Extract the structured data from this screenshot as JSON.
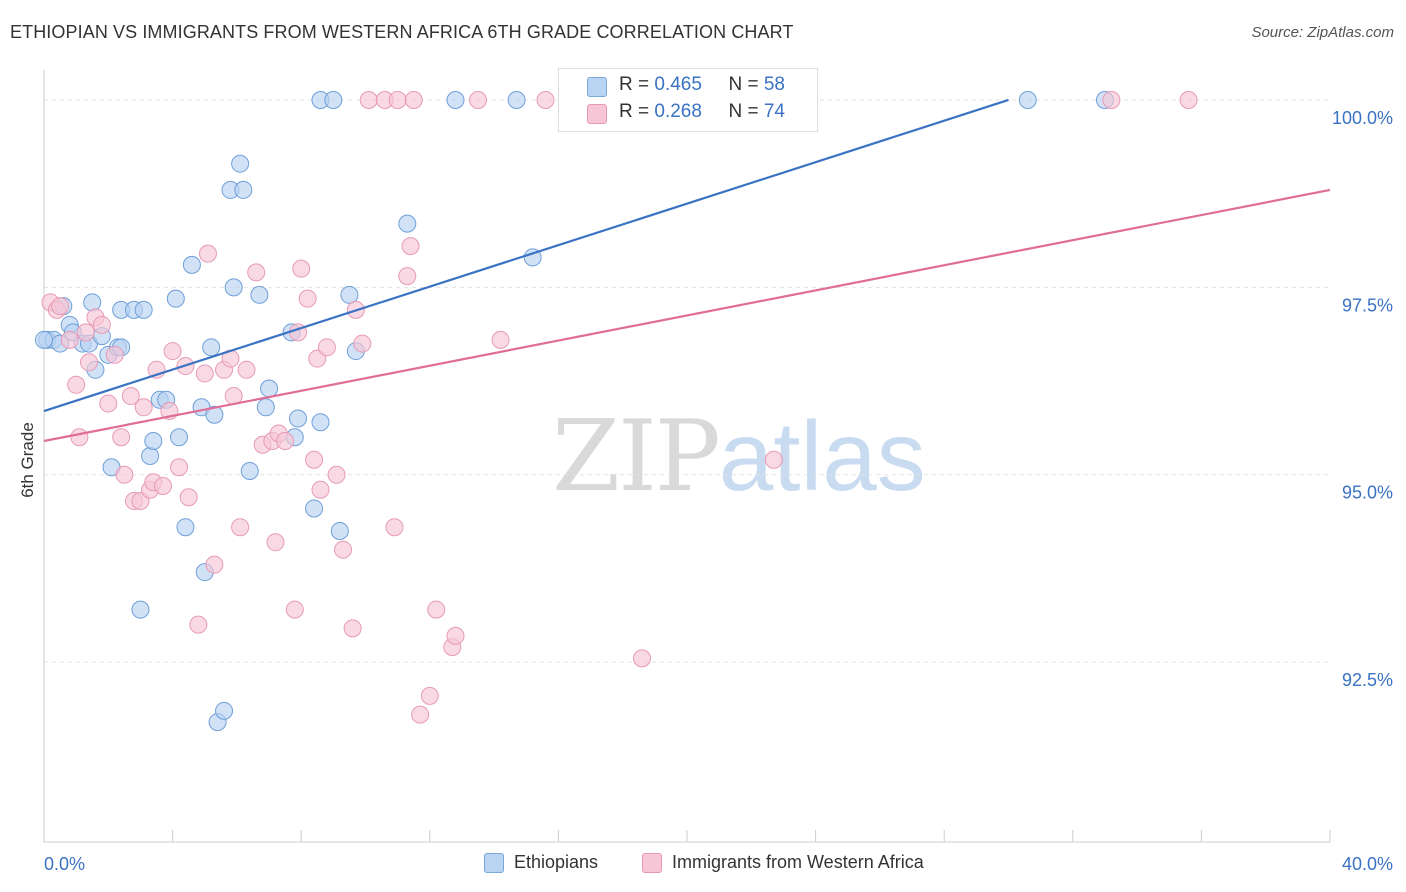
{
  "header": {
    "title": "ETHIOPIAN VS IMMIGRANTS FROM WESTERN AFRICA 6TH GRADE CORRELATION CHART",
    "source": "Source: ZipAtlas.com"
  },
  "watermark": {
    "zip": "ZIP",
    "atlas": "atlas"
  },
  "legend": {
    "blue": {
      "r_label": "R = ",
      "r_value": "0.465",
      "n_label": "N = ",
      "n_value": "58"
    },
    "pink": {
      "r_label": "R = ",
      "r_value": "0.268",
      "n_label": "N = ",
      "n_value": "74"
    }
  },
  "bottom_legend": {
    "blue": "Ethiopians",
    "pink": "Immigrants from Western Africa"
  },
  "colors": {
    "blue": "#3a72c4",
    "blue_fill": "#b9d3f2",
    "pink": "#e06c98",
    "pink_fill": "#f6c6d6",
    "grid": "#e3e3e3"
  },
  "chart_data": {
    "type": "scatter",
    "ylabel": "6th Grade",
    "xlim": [
      0,
      40
    ],
    "ylim": [
      90.1,
      100.4
    ],
    "x_tick_labels": [
      {
        "value": 0,
        "label": "0.0%"
      },
      {
        "value": 40,
        "label": "40.0%"
      }
    ],
    "y_tick_labels": [
      {
        "value": 100.0,
        "label": "100.0%"
      },
      {
        "value": 97.5,
        "label": "97.5%"
      },
      {
        "value": 95.0,
        "label": "95.0%"
      },
      {
        "value": 92.5,
        "label": "92.5%"
      }
    ],
    "series": [
      {
        "name": "Ethiopians",
        "color": "#3a72c4",
        "trend": [
          [
            0,
            95.85
          ],
          [
            30,
            100.0
          ]
        ],
        "points": [
          [
            0.1,
            96.8
          ],
          [
            0.3,
            96.8
          ],
          [
            0.5,
            96.75
          ],
          [
            0.6,
            97.25
          ],
          [
            0.8,
            97.0
          ],
          [
            0.9,
            96.9
          ],
          [
            1.2,
            96.75
          ],
          [
            1.4,
            96.75
          ],
          [
            1.5,
            97.3
          ],
          [
            1.6,
            96.4
          ],
          [
            1.8,
            96.85
          ],
          [
            2.0,
            96.6
          ],
          [
            2.3,
            96.7
          ],
          [
            2.4,
            96.7
          ],
          [
            2.4,
            97.2
          ],
          [
            2.1,
            95.1
          ],
          [
            2.8,
            97.2
          ],
          [
            3.1,
            97.2
          ],
          [
            3.0,
            93.2
          ],
          [
            3.3,
            95.25
          ],
          [
            3.4,
            95.45
          ],
          [
            3.6,
            96.0
          ],
          [
            3.8,
            96.0
          ],
          [
            4.1,
            97.35
          ],
          [
            4.2,
            95.5
          ],
          [
            4.4,
            94.3
          ],
          [
            4.6,
            97.8
          ],
          [
            4.9,
            95.9
          ],
          [
            5.0,
            93.7
          ],
          [
            5.2,
            96.7
          ],
          [
            5.3,
            95.8
          ],
          [
            5.4,
            91.7
          ],
          [
            5.6,
            91.85
          ],
          [
            5.8,
            98.8
          ],
          [
            5.9,
            97.5
          ],
          [
            6.1,
            99.15
          ],
          [
            6.2,
            98.8
          ],
          [
            6.4,
            95.05
          ],
          [
            6.7,
            97.4
          ],
          [
            6.9,
            95.9
          ],
          [
            7.0,
            96.15
          ],
          [
            7.7,
            96.9
          ],
          [
            7.8,
            95.5
          ],
          [
            7.9,
            95.75
          ],
          [
            8.4,
            94.55
          ],
          [
            8.6,
            95.7
          ],
          [
            8.6,
            100.0
          ],
          [
            9.0,
            100.0
          ],
          [
            9.2,
            94.25
          ],
          [
            9.5,
            97.4
          ],
          [
            9.7,
            96.65
          ],
          [
            11.3,
            98.35
          ],
          [
            12.8,
            100.0
          ],
          [
            14.7,
            100.0
          ],
          [
            15.2,
            97.9
          ],
          [
            30.6,
            100.0
          ],
          [
            33.0,
            100.0
          ],
          [
            0.0,
            96.8
          ]
        ]
      },
      {
        "name": "Immigrants from Western Africa",
        "color": "#e06c98",
        "trend": [
          [
            0,
            95.45
          ],
          [
            40,
            98.8
          ]
        ],
        "points": [
          [
            0.2,
            97.3
          ],
          [
            0.4,
            97.2
          ],
          [
            0.5,
            97.25
          ],
          [
            0.8,
            96.8
          ],
          [
            1.0,
            96.2
          ],
          [
            1.1,
            95.5
          ],
          [
            1.3,
            96.9
          ],
          [
            1.4,
            96.5
          ],
          [
            1.6,
            97.1
          ],
          [
            1.8,
            97.0
          ],
          [
            2.0,
            95.95
          ],
          [
            2.2,
            96.6
          ],
          [
            2.4,
            95.5
          ],
          [
            2.5,
            95.0
          ],
          [
            2.7,
            96.05
          ],
          [
            2.8,
            94.65
          ],
          [
            3.0,
            94.65
          ],
          [
            3.1,
            95.9
          ],
          [
            3.3,
            94.8
          ],
          [
            3.4,
            94.9
          ],
          [
            3.5,
            96.4
          ],
          [
            3.7,
            94.85
          ],
          [
            3.9,
            95.85
          ],
          [
            4.0,
            96.65
          ],
          [
            4.2,
            95.1
          ],
          [
            4.4,
            96.45
          ],
          [
            4.5,
            94.7
          ],
          [
            4.8,
            93.0
          ],
          [
            5.0,
            96.35
          ],
          [
            5.1,
            97.95
          ],
          [
            5.3,
            93.8
          ],
          [
            5.6,
            96.4
          ],
          [
            5.8,
            96.55
          ],
          [
            5.9,
            96.05
          ],
          [
            6.1,
            94.3
          ],
          [
            6.3,
            96.4
          ],
          [
            6.6,
            97.7
          ],
          [
            6.8,
            95.4
          ],
          [
            7.1,
            95.45
          ],
          [
            7.2,
            94.1
          ],
          [
            7.3,
            95.55
          ],
          [
            7.5,
            95.45
          ],
          [
            7.8,
            93.2
          ],
          [
            7.9,
            96.9
          ],
          [
            8.0,
            97.75
          ],
          [
            8.2,
            97.35
          ],
          [
            8.4,
            95.2
          ],
          [
            8.5,
            96.55
          ],
          [
            8.6,
            94.8
          ],
          [
            8.8,
            96.7
          ],
          [
            9.1,
            95.0
          ],
          [
            9.3,
            94.0
          ],
          [
            9.6,
            92.95
          ],
          [
            9.7,
            97.2
          ],
          [
            9.9,
            96.75
          ],
          [
            10.1,
            100.0
          ],
          [
            10.6,
            100.0
          ],
          [
            11.0,
            100.0
          ],
          [
            10.9,
            94.3
          ],
          [
            11.3,
            97.65
          ],
          [
            11.4,
            98.05
          ],
          [
            11.5,
            100.0
          ],
          [
            11.7,
            91.8
          ],
          [
            12.0,
            92.05
          ],
          [
            12.2,
            93.2
          ],
          [
            12.7,
            92.7
          ],
          [
            12.8,
            92.85
          ],
          [
            13.5,
            100.0
          ],
          [
            14.2,
            96.8
          ],
          [
            15.6,
            100.0
          ],
          [
            18.6,
            92.55
          ],
          [
            22.7,
            95.2
          ],
          [
            33.2,
            100.0
          ],
          [
            35.6,
            100.0
          ]
        ]
      }
    ]
  }
}
